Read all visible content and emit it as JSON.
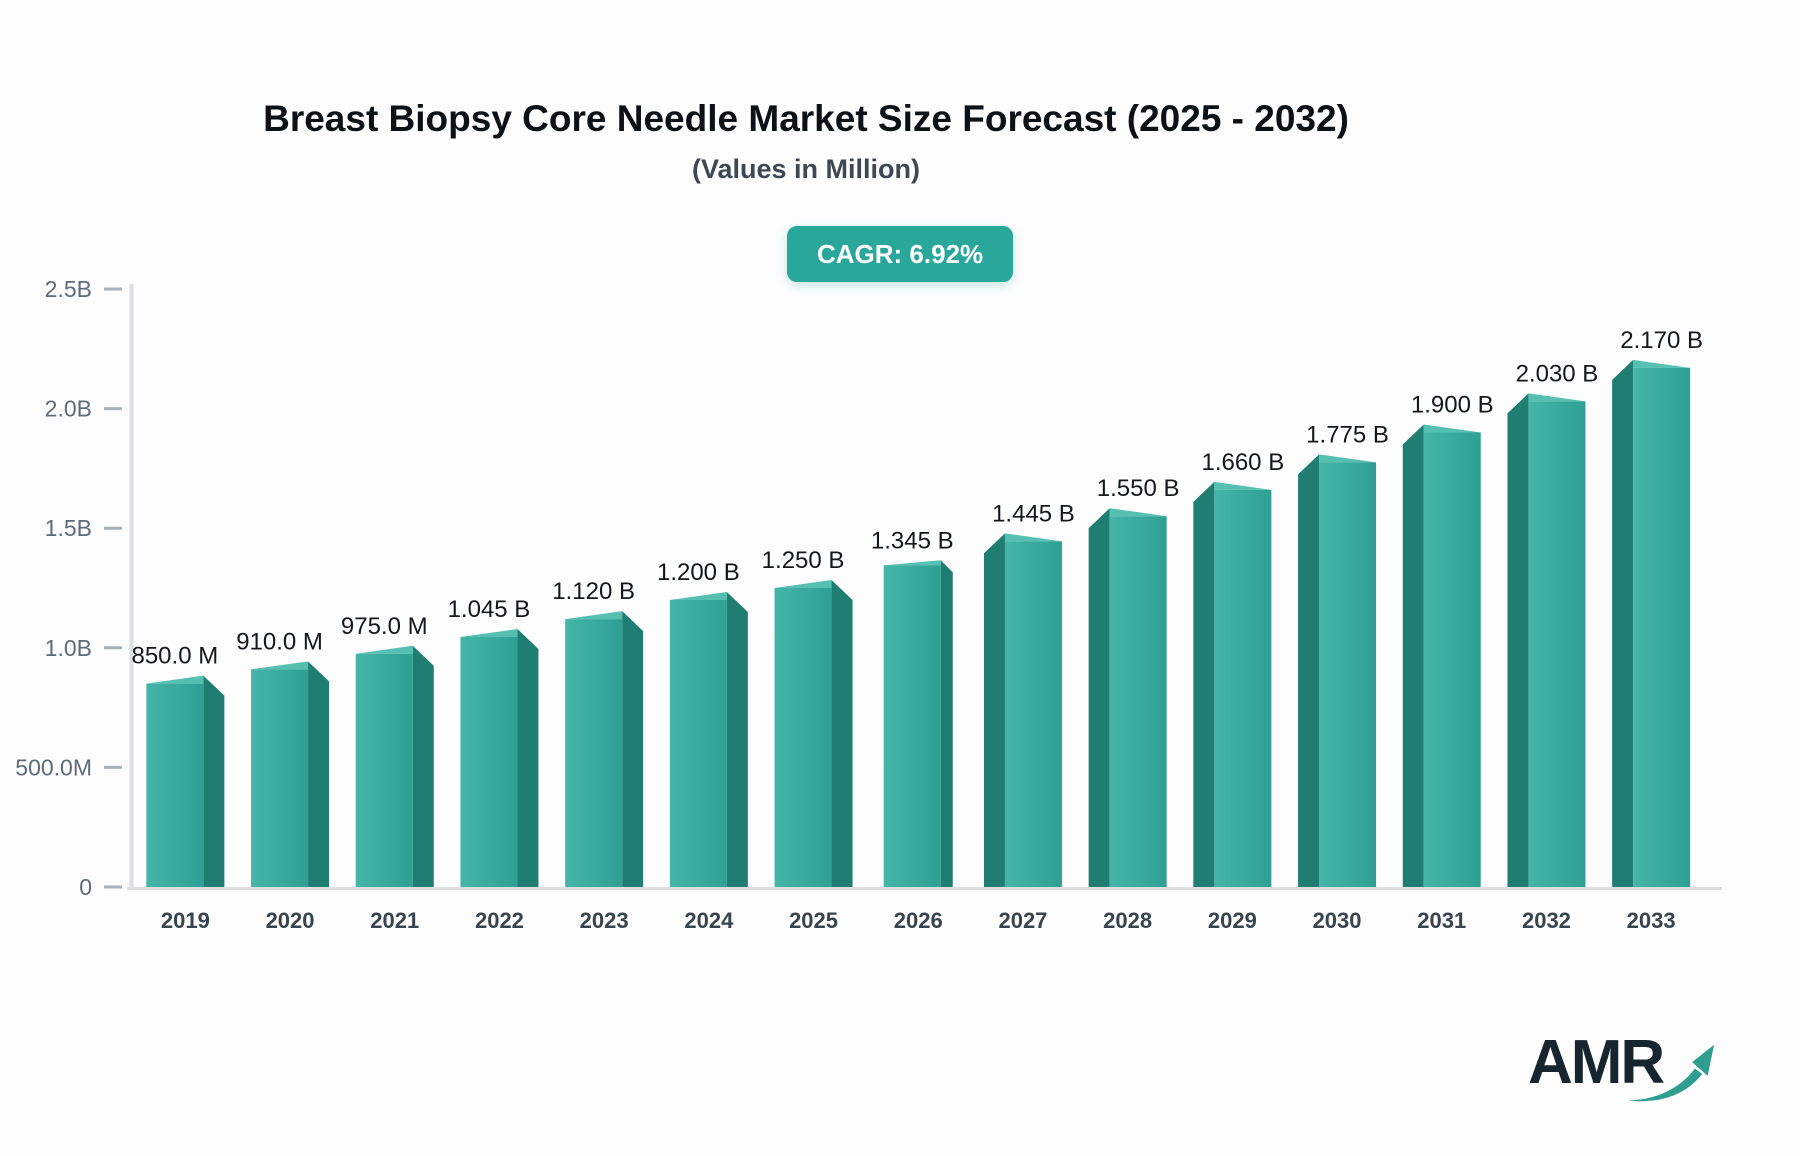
{
  "header": {
    "title": "Breast Biopsy Core Needle Market Size Forecast (2025 - 2032)",
    "subtitle": "(Values in Million)",
    "cagr_badge": "CAGR: 6.92%"
  },
  "logo": {
    "text": "AMR"
  },
  "colors": {
    "accent": "#2AA79B",
    "bar_front_light": "#45B5A8",
    "bar_front_dark": "#2EA093",
    "bar_side": "#1F7D72",
    "bar_top": "#55BFB1",
    "axis": "#DCDEE2",
    "tick": "#A9B1B8",
    "tick_label": "#5B6B79",
    "year_label": "#36454F",
    "value_label": "#14181C",
    "logo_swoosh": "#2F9E90"
  },
  "chart_data": {
    "type": "bar",
    "title": "Breast Biopsy Core Needle Market Size Forecast (2025 - 2032)",
    "subtitle": "(Values in Million)",
    "annotation": "CAGR: 6.92%",
    "categories": [
      2019,
      2020,
      2021,
      2022,
      2023,
      2024,
      2025,
      2026,
      2027,
      2028,
      2029,
      2030,
      2031,
      2032,
      2033
    ],
    "values_million": [
      850,
      910,
      975,
      1045,
      1120,
      1200,
      1250,
      1345,
      1445,
      1550,
      1660,
      1775,
      1900,
      2030,
      2170
    ],
    "value_labels": [
      "850.0 M",
      "910.0 M",
      "975.0 M",
      "1.045 B",
      "1.120 B",
      "1.200 B",
      "1.250 B",
      "1.345 B",
      "1.445 B",
      "1.550 B",
      "1.660 B",
      "1.775 B",
      "1.900 B",
      "2.030 B",
      "2.170 B"
    ],
    "y_axis": {
      "max_million": 2500,
      "ticks": [
        {
          "label": "2.5B",
          "value_million": 2500
        },
        {
          "label": "2.0B",
          "value_million": 2000
        },
        {
          "label": "1.5B",
          "value_million": 1500
        },
        {
          "label": "1.0B",
          "value_million": 1000
        },
        {
          "label": "500.0M",
          "value_million": 500
        },
        {
          "label": "0",
          "value_million": 0
        }
      ]
    },
    "xlabel": "",
    "ylabel": "",
    "grid": "off",
    "legend": "none",
    "bar_style": "3d-perspective-teal"
  }
}
